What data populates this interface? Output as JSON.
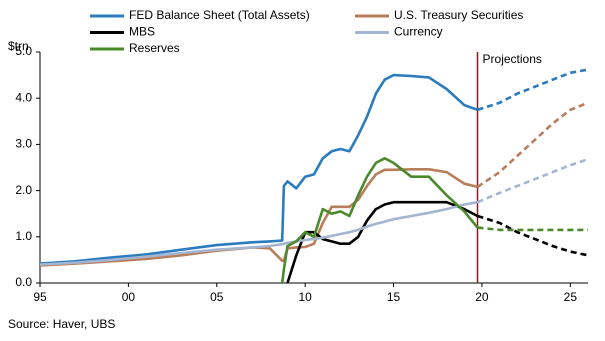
{
  "chart_data": {
    "type": "line",
    "y_label": "$trn",
    "source": "Source: Haver, UBS",
    "annotation": "Projections",
    "projection_x": 2019.75,
    "projection_color": "#8b1a1a",
    "x": [
      1995,
      1997,
      1999,
      2001,
      2003,
      2005,
      2007,
      2008,
      2008.7,
      2008.8,
      2009,
      2009.5,
      2010,
      2010.5,
      2011,
      2011.5,
      2012,
      2012.5,
      2013,
      2013.5,
      2014,
      2014.5,
      2015,
      2016,
      2017,
      2018,
      2019,
      2019.75,
      2021,
      2022,
      2023,
      2024,
      2025,
      2026
    ],
    "series": [
      {
        "name": "FED Balance Sheet (Total Assets)",
        "color": "#2b7bbf",
        "values": [
          0.42,
          0.47,
          0.55,
          0.62,
          0.72,
          0.82,
          0.88,
          0.9,
          0.92,
          2.1,
          2.2,
          2.05,
          2.3,
          2.35,
          2.7,
          2.85,
          2.9,
          2.85,
          3.2,
          3.6,
          4.1,
          4.4,
          4.5,
          4.48,
          4.45,
          4.2,
          3.85,
          3.75,
          3.9,
          4.1,
          4.25,
          4.4,
          4.55,
          4.62
        ]
      },
      {
        "name": "U.S. Treasury Securities",
        "color": "#b87d5a",
        "values": [
          0.38,
          0.42,
          0.47,
          0.52,
          0.6,
          0.7,
          0.77,
          0.75,
          0.48,
          0.48,
          0.75,
          0.77,
          0.78,
          0.85,
          1.3,
          1.65,
          1.65,
          1.65,
          1.8,
          2.1,
          2.35,
          2.45,
          2.45,
          2.46,
          2.46,
          2.4,
          2.15,
          2.08,
          2.4,
          2.75,
          3.1,
          3.45,
          3.75,
          3.9
        ]
      },
      {
        "name": "MBS",
        "color": "#000000",
        "values": [
          null,
          null,
          null,
          null,
          null,
          null,
          null,
          null,
          null,
          null,
          0.0,
          0.6,
          1.1,
          1.1,
          0.95,
          0.9,
          0.85,
          0.85,
          1.0,
          1.35,
          1.6,
          1.7,
          1.75,
          1.75,
          1.75,
          1.75,
          1.6,
          1.45,
          1.3,
          1.1,
          0.95,
          0.8,
          0.68,
          0.6
        ]
      },
      {
        "name": "Currency",
        "color": "#a4b5d2",
        "values": [
          0.4,
          0.44,
          0.5,
          0.57,
          0.65,
          0.72,
          0.77,
          0.8,
          0.84,
          0.85,
          0.87,
          0.9,
          0.93,
          0.95,
          0.98,
          1.02,
          1.06,
          1.1,
          1.15,
          1.22,
          1.28,
          1.33,
          1.38,
          1.45,
          1.52,
          1.6,
          1.7,
          1.75,
          1.95,
          2.1,
          2.25,
          2.4,
          2.55,
          2.68
        ]
      },
      {
        "name": "Reserves",
        "color": "#4a8a2a",
        "values": [
          null,
          null,
          null,
          null,
          null,
          null,
          null,
          null,
          0.0,
          0.3,
          0.8,
          0.9,
          1.1,
          1.0,
          1.6,
          1.5,
          1.55,
          1.45,
          1.9,
          2.3,
          2.6,
          2.7,
          2.6,
          2.3,
          2.3,
          1.9,
          1.55,
          1.2,
          1.15,
          1.15,
          1.15,
          1.15,
          1.15,
          1.15
        ]
      }
    ],
    "xlim": [
      1995,
      2026
    ],
    "ylim": [
      0,
      5
    ],
    "xticks": [
      {
        "value": 1995,
        "label": "95"
      },
      {
        "value": 2000,
        "label": "00"
      },
      {
        "value": 2005,
        "label": "05"
      },
      {
        "value": 2010,
        "label": "10"
      },
      {
        "value": 2015,
        "label": "15"
      },
      {
        "value": 2020,
        "label": "20"
      },
      {
        "value": 2025,
        "label": "25"
      }
    ],
    "yticks": [
      {
        "value": 0,
        "label": "0.0"
      },
      {
        "value": 1,
        "label": "1.0"
      },
      {
        "value": 2,
        "label": "2.0"
      },
      {
        "value": 3,
        "label": "3.0"
      },
      {
        "value": 4,
        "label": "4.0"
      },
      {
        "value": 5,
        "label": "5.0"
      }
    ]
  }
}
